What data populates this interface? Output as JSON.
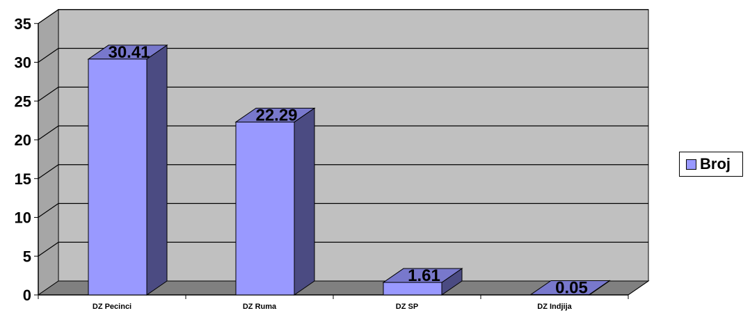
{
  "chart_data": {
    "type": "bar",
    "title": "",
    "xlabel": "",
    "ylabel": "",
    "categories": [
      "DZ Pecinci",
      "DZ Ruma",
      "DZ SP",
      "DZ Indjija"
    ],
    "series": [
      {
        "name": "Broj",
        "values": [
          30.41,
          22.29,
          1.61,
          0.05
        ],
        "data_labels": [
          "30.41",
          "22.29",
          "1.61",
          "0.05"
        ]
      }
    ],
    "ylim": [
      0,
      35
    ],
    "yticks": [
      "0",
      "5",
      "10",
      "15",
      "20",
      "25",
      "30",
      "35"
    ],
    "grid": true,
    "three_d": true,
    "legend_position": "right",
    "colors": {
      "bar_front": "#9999ff",
      "bar_side": "#4b4b82",
      "bar_top": "#7878cc",
      "plot_back": "#c0c0c0",
      "plot_wall": "#a6a6a6",
      "floor": "#808080",
      "grid": "#000000"
    }
  }
}
